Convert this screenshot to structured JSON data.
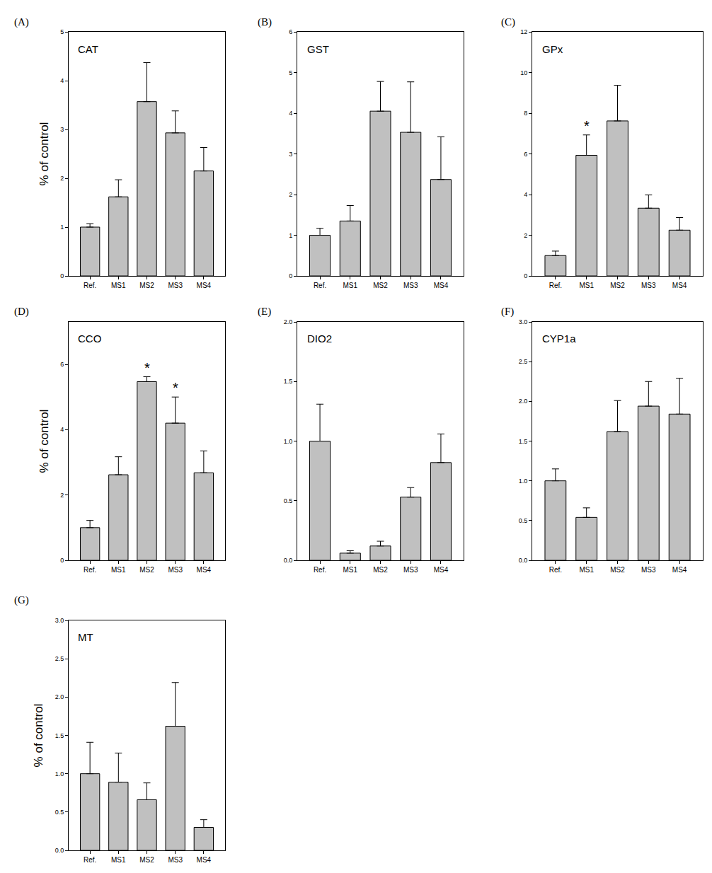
{
  "chart_data": [
    {
      "type": "bar",
      "label": "(A)",
      "title": "CAT",
      "ylabel": "% of control",
      "categories": [
        "Ref.",
        "MS1",
        "MS2",
        "MS3",
        "MS4"
      ],
      "values": [
        1.0,
        1.62,
        3.57,
        2.93,
        2.15
      ],
      "errors": [
        0.07,
        0.35,
        0.8,
        0.45,
        0.48
      ],
      "color": "#c0c0c0",
      "ylim": [
        0,
        5
      ],
      "yticks": [
        0,
        1,
        2,
        3,
        4,
        5
      ],
      "annotations": []
    },
    {
      "type": "bar",
      "label": "(B)",
      "title": "GST",
      "categories": [
        "Ref.",
        "MS1",
        "MS2",
        "MS3",
        "MS4"
      ],
      "values": [
        1.0,
        1.35,
        4.05,
        3.53,
        2.37
      ],
      "errors": [
        0.17,
        0.38,
        0.73,
        1.24,
        1.05
      ],
      "color": "#c0c0c0",
      "ylim": [
        0,
        6
      ],
      "yticks": [
        0,
        1,
        2,
        3,
        4,
        5,
        6
      ],
      "annotations": []
    },
    {
      "type": "bar",
      "label": "(C)",
      "title": "GPx",
      "categories": [
        "Ref.",
        "MS1",
        "MS2",
        "MS3",
        "MS4"
      ],
      "values": [
        1.0,
        5.93,
        7.62,
        3.33,
        2.25
      ],
      "errors": [
        0.22,
        1.0,
        1.75,
        0.65,
        0.62
      ],
      "color": "#c0c0c0",
      "ylim": [
        0,
        12
      ],
      "yticks": [
        0,
        2,
        4,
        6,
        8,
        10,
        12
      ],
      "annotations": [
        {
          "category": "MS1",
          "text": "*"
        }
      ]
    },
    {
      "type": "bar",
      "label": "(D)",
      "title": "CCO",
      "ylabel": "% of control",
      "categories": [
        "Ref.",
        "MS1",
        "MS2",
        "MS3",
        "MS4"
      ],
      "values": [
        1.0,
        2.62,
        5.47,
        4.2,
        2.68
      ],
      "errors": [
        0.22,
        0.55,
        0.15,
        0.8,
        0.67
      ],
      "color": "#c0c0c0",
      "ylim": [
        0,
        7.3
      ],
      "yticks": [
        0,
        2,
        4,
        6
      ],
      "annotations": [
        {
          "category": "MS2",
          "text": "*"
        },
        {
          "category": "MS3",
          "text": "*"
        }
      ]
    },
    {
      "type": "bar",
      "label": "(E)",
      "title": "DIO2",
      "categories": [
        "Ref.",
        "MS1",
        "MS2",
        "MS3",
        "MS4"
      ],
      "values": [
        1.0,
        0.06,
        0.12,
        0.53,
        0.82
      ],
      "errors": [
        0.31,
        0.02,
        0.04,
        0.08,
        0.24
      ],
      "color": "#c0c0c0",
      "ylim": [
        0,
        2
      ],
      "yticks": [
        {
          "value": 0,
          "label": "0.0"
        },
        {
          "value": 0.5,
          "label": "0.5"
        },
        {
          "value": 1,
          "label": "1.0"
        },
        {
          "value": 1.5,
          "label": "1.5"
        },
        {
          "value": 2,
          "label": "2.0"
        }
      ],
      "annotations": []
    },
    {
      "type": "bar",
      "label": "(F)",
      "title": "CYP1a",
      "categories": [
        "Ref.",
        "MS1",
        "MS2",
        "MS3",
        "MS4"
      ],
      "values": [
        1.0,
        0.54,
        1.62,
        1.94,
        1.84
      ],
      "errors": [
        0.15,
        0.12,
        0.39,
        0.31,
        0.45
      ],
      "color": "#c0c0c0",
      "ylim": [
        0,
        3
      ],
      "yticks": [
        {
          "value": 0,
          "label": "0.0"
        },
        {
          "value": 0.5,
          "label": "0.5"
        },
        {
          "value": 1,
          "label": "1.0"
        },
        {
          "value": 1.5,
          "label": "1.5"
        },
        {
          "value": 2,
          "label": "2.0"
        },
        {
          "value": 2.5,
          "label": "2.5"
        },
        {
          "value": 3,
          "label": "3.0"
        }
      ],
      "annotations": []
    },
    {
      "type": "bar",
      "label": "(G)",
      "title": "MT",
      "ylabel": "% of control",
      "categories": [
        "Ref.",
        "MS1",
        "MS2",
        "MS3",
        "MS4"
      ],
      "values": [
        1.0,
        0.89,
        0.66,
        1.62,
        0.3
      ],
      "errors": [
        0.41,
        0.38,
        0.22,
        0.57,
        0.1
      ],
      "color": "#c0c0c0",
      "ylim": [
        0,
        3
      ],
      "yticks": [
        {
          "value": 0,
          "label": "0.0"
        },
        {
          "value": 0.5,
          "label": "0.5"
        },
        {
          "value": 1,
          "label": "1.0"
        },
        {
          "value": 1.5,
          "label": "1.5"
        },
        {
          "value": 2,
          "label": "2.0"
        },
        {
          "value": 2.5,
          "label": "2.5"
        },
        {
          "value": 3,
          "label": "3.0"
        }
      ],
      "annotations": []
    }
  ]
}
